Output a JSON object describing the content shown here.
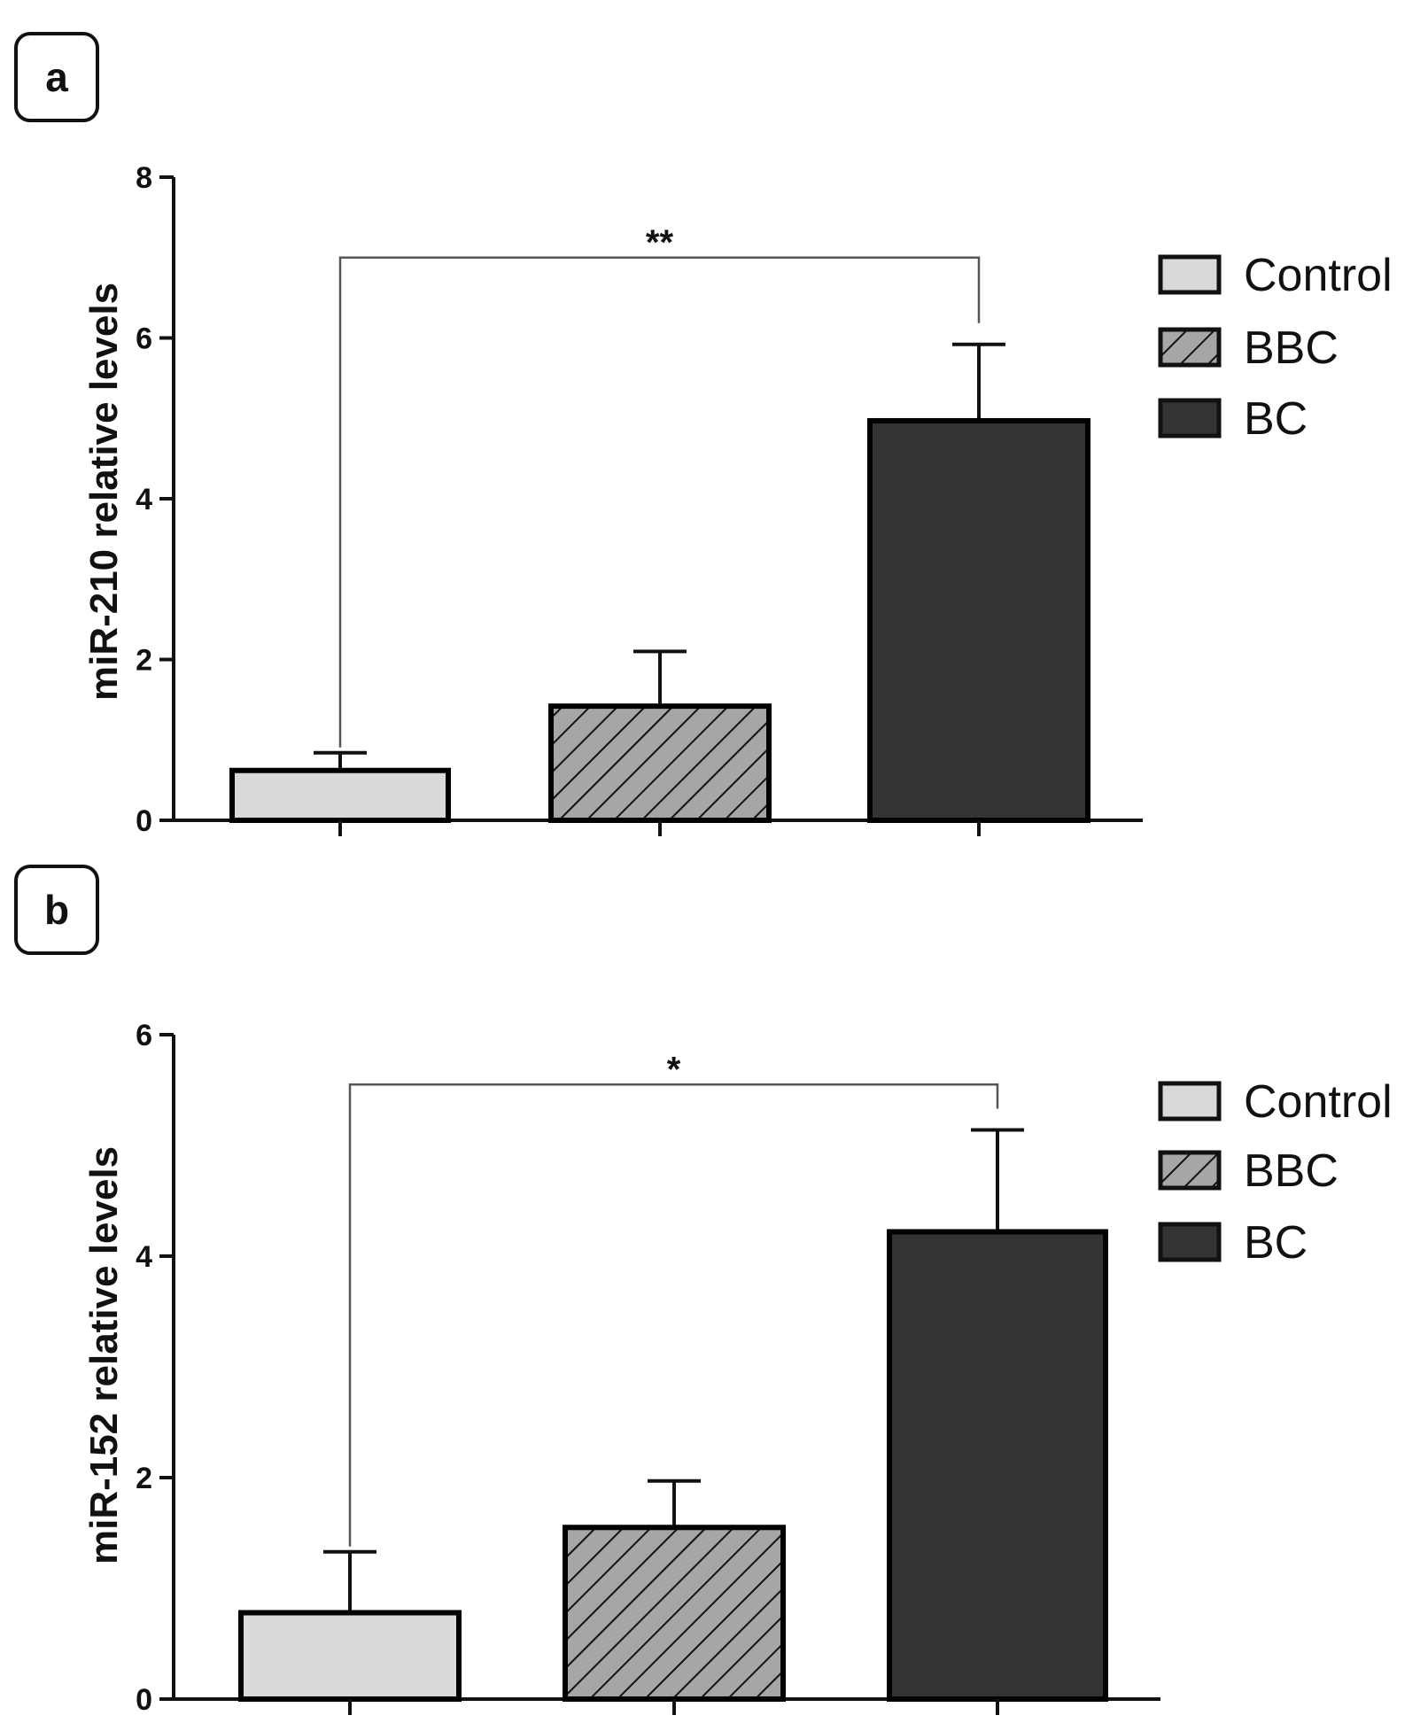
{
  "colors": {
    "control": "#d9d9d9",
    "bbc": "#a6a6a6",
    "bc": "#333333",
    "stroke": "#000000",
    "bracket": "#555555"
  },
  "chart_data": [
    {
      "panel": "a",
      "type": "bar",
      "categories": [
        "Control",
        "BBC",
        "BC"
      ],
      "values": [
        0.62,
        1.42,
        4.97
      ],
      "errors": [
        0.22,
        0.68,
        0.95
      ],
      "xlabel": "",
      "ylabel": "miR-210 relative levels",
      "ylim": [
        0,
        8
      ],
      "yticks": [
        "0",
        "2",
        "4",
        "6",
        "8"
      ],
      "legend": [
        "Control",
        "BBC",
        "BC"
      ],
      "significance": {
        "from": 0,
        "to": 2,
        "label": "**",
        "level": 7.0
      }
    },
    {
      "panel": "b",
      "type": "bar",
      "categories": [
        "Control",
        "BBC",
        "BC"
      ],
      "values": [
        0.78,
        1.55,
        4.22
      ],
      "errors": [
        0.55,
        0.42,
        0.92
      ],
      "xlabel": "",
      "ylabel": "miR-152 relative levels",
      "ylim": [
        0,
        6
      ],
      "yticks": [
        "0",
        "2",
        "4",
        "6"
      ],
      "legend": [
        "Control",
        "BBC",
        "BC"
      ],
      "significance": {
        "from": 0,
        "to": 2,
        "label": "*",
        "level": 5.55
      }
    }
  ]
}
